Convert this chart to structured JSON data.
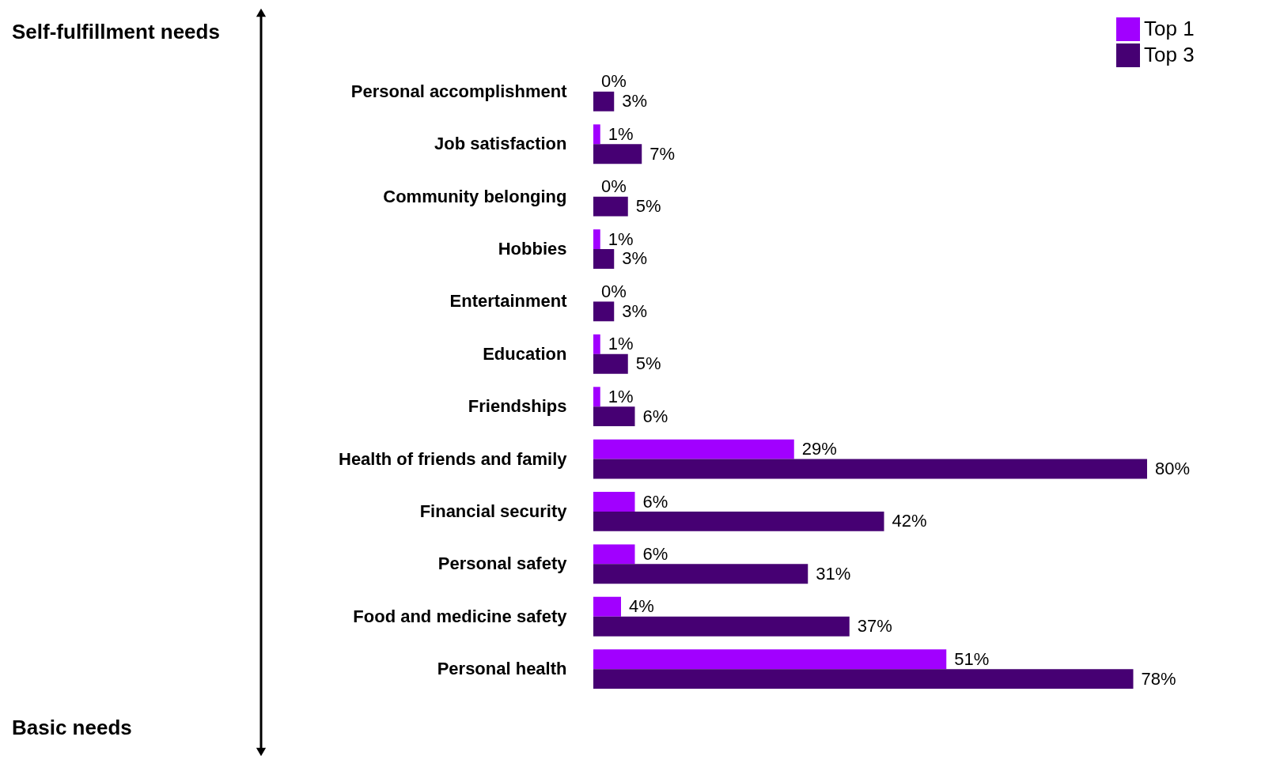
{
  "chart_data": {
    "type": "bar",
    "orientation": "horizontal",
    "categories": [
      "Personal accomplishment",
      "Job satisfaction",
      "Community belonging",
      "Hobbies",
      "Entertainment",
      "Education",
      "Friendships",
      "Health of friends and family",
      "Financial security",
      "Personal safety",
      "Food and medicine safety",
      "Personal health"
    ],
    "series": [
      {
        "name": "Top 1",
        "color": "#a100ff",
        "values": [
          0,
          1,
          0,
          1,
          0,
          1,
          1,
          29,
          6,
          6,
          4,
          51
        ],
        "value_labels": [
          "0%",
          "1%",
          "0%",
          "1%",
          "0%",
          "1%",
          "1%",
          "29%",
          "6%",
          "6%",
          "4%",
          "51%"
        ]
      },
      {
        "name": "Top 3",
        "color": "#460073",
        "values": [
          3,
          7,
          5,
          3,
          3,
          5,
          6,
          80,
          42,
          31,
          37,
          78
        ],
        "value_labels": [
          "3%",
          "7%",
          "5%",
          "3%",
          "3%",
          "5%",
          "6%",
          "80%",
          "42%",
          "31%",
          "37%",
          "78%"
        ]
      }
    ],
    "legend": "top right",
    "grid": false,
    "annotations": [
      "Self-fulfillment needs",
      "Basic needs"
    ]
  }
}
